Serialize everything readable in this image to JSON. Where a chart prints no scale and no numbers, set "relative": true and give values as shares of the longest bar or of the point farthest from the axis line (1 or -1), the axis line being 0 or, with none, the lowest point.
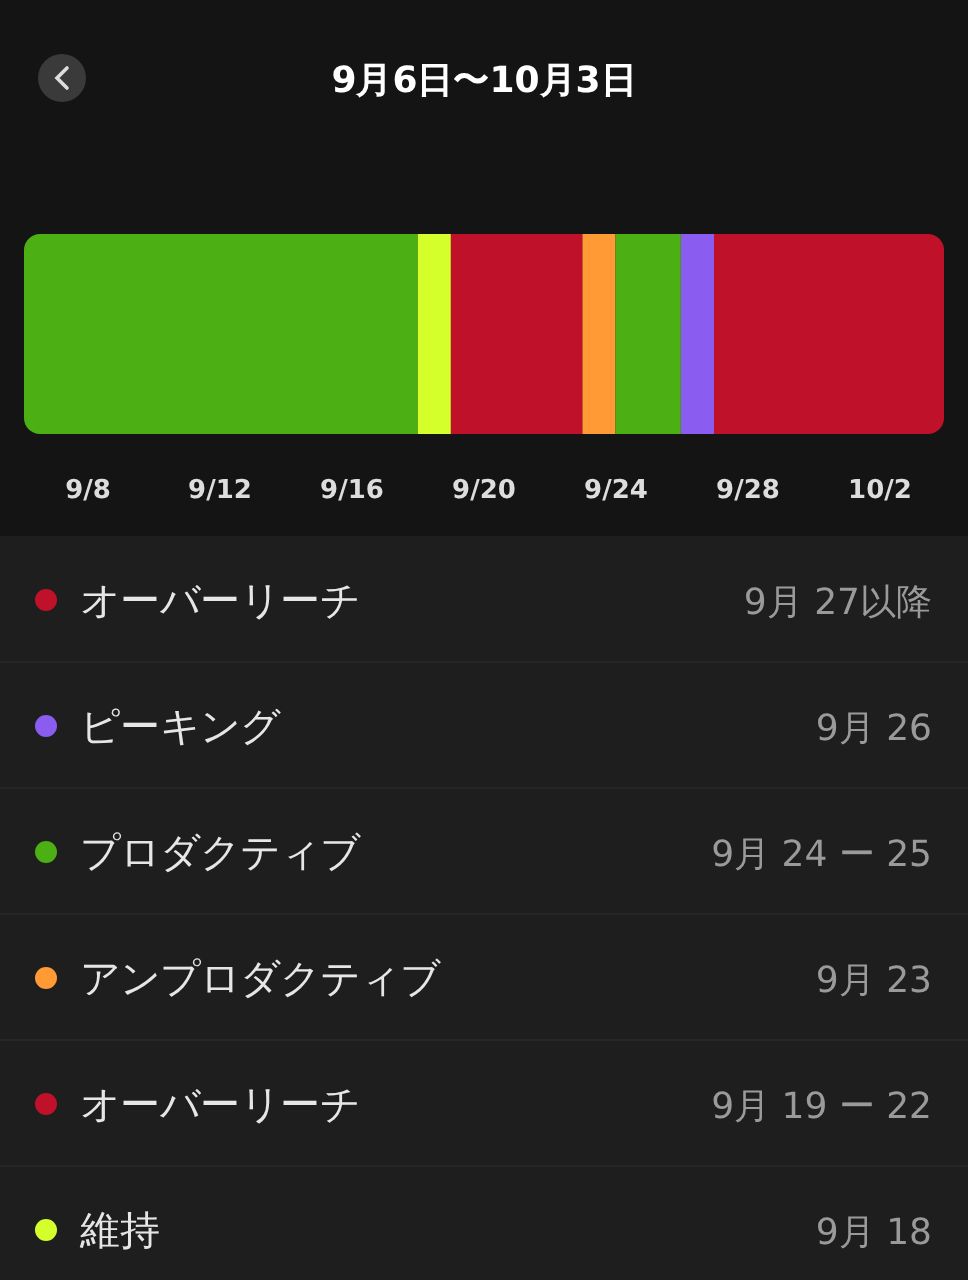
{
  "chart_data": {
    "type": "bar",
    "orientation": "horizontal",
    "stacked": true,
    "relative": true,
    "title": "9月6日〜10月3日",
    "categories": [
      null
    ],
    "series": [
      {
        "color": "#4caf14",
        "values": [
          0.428
        ]
      },
      {
        "name": "維持",
        "color": "#d4ff2a",
        "values": [
          0.036
        ]
      },
      {
        "name": "オーバーリーチ",
        "color": "#c0112a",
        "values": [
          0.143
        ]
      },
      {
        "name": "アンプロダクティブ",
        "color": "#ff9a35",
        "values": [
          0.036
        ]
      },
      {
        "name": "プロダクティブ",
        "color": "#4caf14",
        "values": [
          0.071
        ]
      },
      {
        "name": "ピーキング",
        "color": "#8a5cf0",
        "values": [
          0.036
        ]
      },
      {
        "name": "オーバーリーチ",
        "color": "#c0112a",
        "values": [
          0.25
        ]
      }
    ],
    "legend": "bottom",
    "annotations": [
      "9/8",
      "9/12",
      "9/16",
      "9/20",
      "9/24",
      "9/28",
      "10/2",
      "9月 27以降",
      "9月 26",
      "9月 24 ー 25",
      "9月 23",
      "9月 19 ー 22",
      "9月 18"
    ]
  }
}
